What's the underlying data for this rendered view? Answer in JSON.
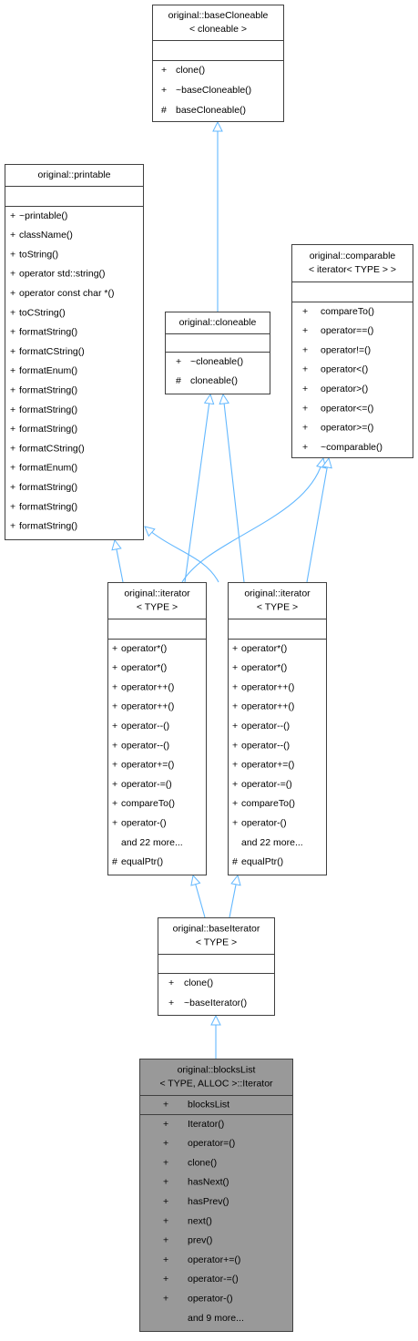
{
  "nodes": [
    {
      "title": [
        "original::baseCloneable",
        "< cloneable >"
      ],
      "attributes": [],
      "methods": [
        {
          "vis": "+",
          "name": "clone()"
        },
        {
          "vis": "+",
          "name": "~baseCloneable()"
        },
        {
          "vis": "#",
          "name": "baseCloneable()"
        }
      ]
    },
    {
      "title": [
        "original::printable"
      ],
      "attributes": [],
      "methods": [
        {
          "vis": "+",
          "name": "~printable()"
        },
        {
          "vis": "+",
          "name": "className()"
        },
        {
          "vis": "+",
          "name": "toString()"
        },
        {
          "vis": "+",
          "name": "operator std::string()"
        },
        {
          "vis": "+",
          "name": "operator const char *()"
        },
        {
          "vis": "+",
          "name": "toCString()"
        },
        {
          "vis": "+",
          "name": "formatString()"
        },
        {
          "vis": "+",
          "name": "formatCString()"
        },
        {
          "vis": "+",
          "name": "formatEnum()"
        },
        {
          "vis": "+",
          "name": "formatString()"
        },
        {
          "vis": "+",
          "name": "formatString()"
        },
        {
          "vis": "+",
          "name": "formatString()"
        },
        {
          "vis": "+",
          "name": "formatCString()"
        },
        {
          "vis": "+",
          "name": "formatEnum()"
        },
        {
          "vis": "+",
          "name": "formatString()"
        },
        {
          "vis": "+",
          "name": "formatString()"
        },
        {
          "vis": "+",
          "name": "formatString()"
        }
      ]
    },
    {
      "title": [
        "original::comparable",
        "< iterator< TYPE > >"
      ],
      "attributes": [],
      "methods": [
        {
          "vis": "+",
          "name": "compareTo()"
        },
        {
          "vis": "+",
          "name": "operator==()"
        },
        {
          "vis": "+",
          "name": "operator!=()"
        },
        {
          "vis": "+",
          "name": "operator<()"
        },
        {
          "vis": "+",
          "name": "operator>()"
        },
        {
          "vis": "+",
          "name": "operator<=()"
        },
        {
          "vis": "+",
          "name": "operator>=()"
        },
        {
          "vis": "+",
          "name": "~comparable()"
        }
      ]
    },
    {
      "title": [
        "original::cloneable"
      ],
      "attributes": [],
      "methods": [
        {
          "vis": "+",
          "name": "~cloneable()"
        },
        {
          "vis": "#",
          "name": "cloneable()"
        }
      ]
    },
    {
      "title": [
        "original::iterator",
        "< TYPE >"
      ],
      "attributes": [],
      "methods": [
        {
          "vis": "+",
          "name": "operator*()"
        },
        {
          "vis": "+",
          "name": "operator*()"
        },
        {
          "vis": "+",
          "name": "operator++()"
        },
        {
          "vis": "+",
          "name": "operator++()"
        },
        {
          "vis": "+",
          "name": "operator--()"
        },
        {
          "vis": "+",
          "name": "operator--()"
        },
        {
          "vis": "+",
          "name": "operator+=()"
        },
        {
          "vis": "+",
          "name": "operator-=()"
        },
        {
          "vis": "+",
          "name": "compareTo()"
        },
        {
          "vis": "+",
          "name": "operator-()"
        },
        {
          "name": "and 22 more..."
        },
        {
          "vis": "#",
          "name": "equalPtr()"
        }
      ]
    },
    {
      "title": [
        "original::iterator",
        "< TYPE >"
      ],
      "attributes": [],
      "methods": [
        {
          "vis": "+",
          "name": "operator*()"
        },
        {
          "vis": "+",
          "name": "operator*()"
        },
        {
          "vis": "+",
          "name": "operator++()"
        },
        {
          "vis": "+",
          "name": "operator++()"
        },
        {
          "vis": "+",
          "name": "operator--()"
        },
        {
          "vis": "+",
          "name": "operator--()"
        },
        {
          "vis": "+",
          "name": "operator+=()"
        },
        {
          "vis": "+",
          "name": "operator-=()"
        },
        {
          "vis": "+",
          "name": "compareTo()"
        },
        {
          "vis": "+",
          "name": "operator-()"
        },
        {
          "name": "and 22 more..."
        },
        {
          "vis": "#",
          "name": "equalPtr()"
        }
      ]
    },
    {
      "title": [
        "original::baseIterator",
        "< TYPE >"
      ],
      "attributes": [],
      "methods": [
        {
          "vis": "+",
          "name": "clone()"
        },
        {
          "vis": "+",
          "name": "~baseIterator()"
        }
      ]
    },
    {
      "title": [
        "original::blocksList",
        "< TYPE, ALLOC >::Iterator"
      ],
      "attributes": [
        {
          "vis": "+",
          "name": "blocksList"
        }
      ],
      "methods": [
        {
          "vis": "+",
          "name": "Iterator()"
        },
        {
          "vis": "+",
          "name": "operator=()"
        },
        {
          "vis": "+",
          "name": "clone()"
        },
        {
          "vis": "+",
          "name": "hasNext()"
        },
        {
          "vis": "+",
          "name": "hasPrev()"
        },
        {
          "vis": "+",
          "name": "next()"
        },
        {
          "vis": "+",
          "name": "prev()"
        },
        {
          "vis": "+",
          "name": "operator+=()"
        },
        {
          "vis": "+",
          "name": "operator-=()"
        },
        {
          "vis": "+",
          "name": "operator-()"
        },
        {
          "name": "and 9 more..."
        }
      ]
    }
  ]
}
